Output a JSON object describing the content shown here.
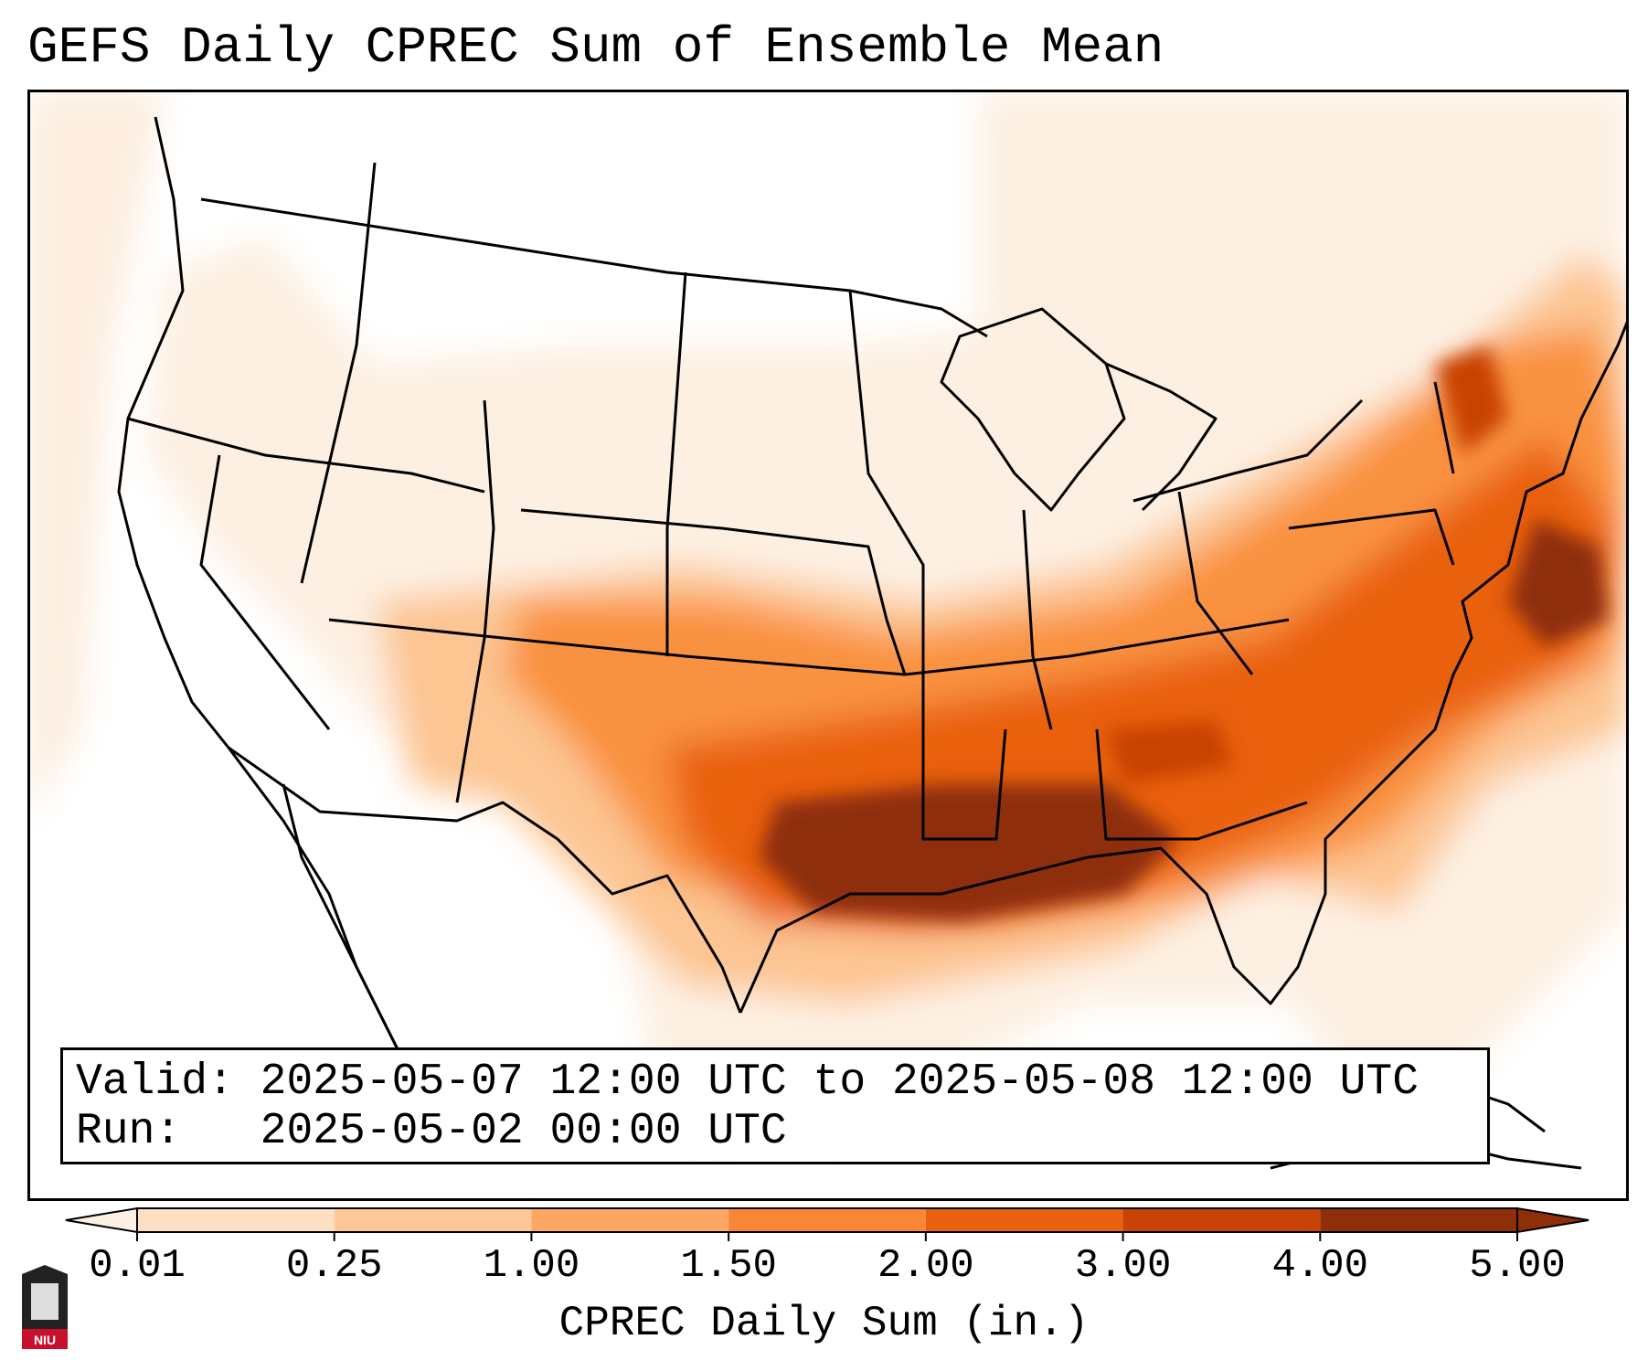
{
  "title": "GEFS Daily CPREC Sum of Ensemble Mean",
  "info": {
    "valid": "Valid: 2025-05-07 12:00 UTC to 2025-05-08 12:00 UTC",
    "run": "Run:   2025-05-02 00:00 UTC"
  },
  "colorbar": {
    "label": "CPREC Daily Sum (in.)",
    "ticks": [
      "0.01",
      "0.25",
      "1.00",
      "1.50",
      "2.00",
      "3.00",
      "4.00",
      "5.00"
    ],
    "colors": [
      "#fdf1e4",
      "#fde0c3",
      "#fdc797",
      "#fca762",
      "#f98537",
      "#e9610f",
      "#c84306",
      "#8e2f0a"
    ],
    "extend": "both"
  },
  "logo": {
    "text": "NIU"
  }
}
